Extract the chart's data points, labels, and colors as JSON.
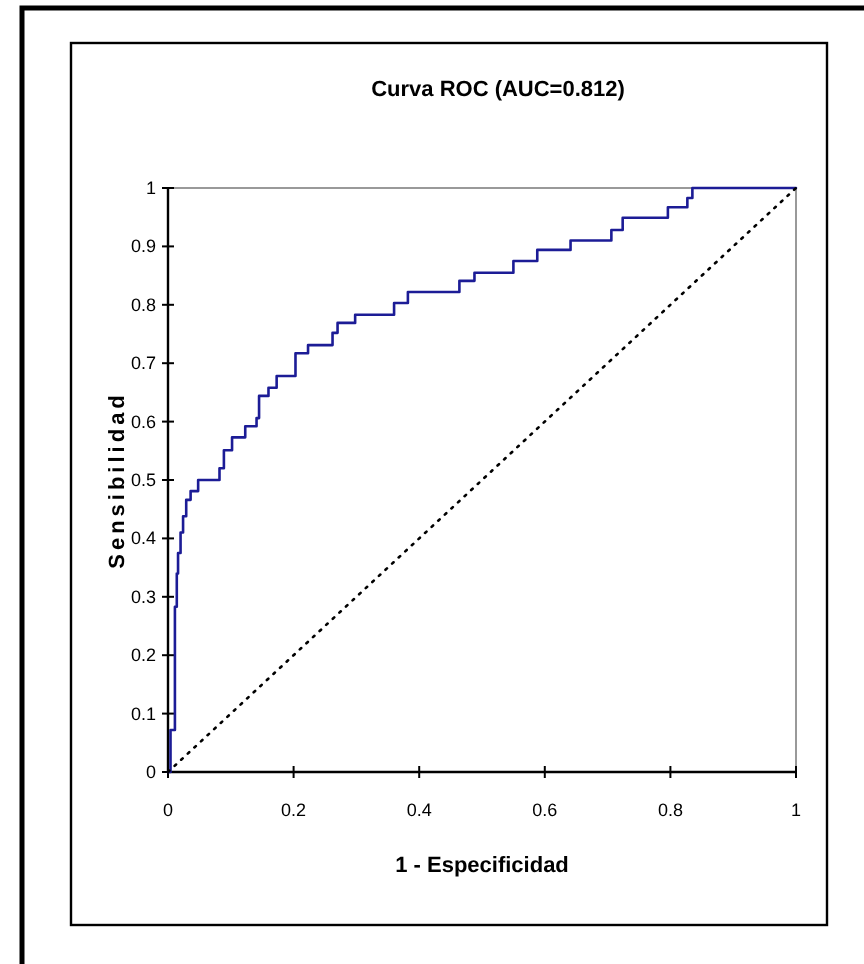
{
  "chart_data": {
    "type": "step",
    "title": "Curva ROC (AUC=0.812)",
    "xlabel": "1 - Especificidad",
    "ylabel": "Sensibilidad",
    "xlim": [
      0,
      1
    ],
    "ylim": [
      0,
      1
    ],
    "xticks": [
      0,
      0.2,
      0.4,
      0.6,
      0.8,
      1
    ],
    "yticks": [
      0,
      0.1,
      0.2,
      0.3,
      0.4,
      0.5,
      0.6,
      0.7,
      0.8,
      0.9,
      1
    ],
    "grid": false,
    "series": [
      {
        "type": "step",
        "color": "#1c1c96",
        "line_style": "solid",
        "x": [
          0,
          0.004,
          0.011,
          0.014,
          0.016,
          0.02,
          0.024,
          0.029,
          0.036,
          0.048,
          0.082,
          0.089,
          0.102,
          0.123,
          0.141,
          0.145,
          0.16,
          0.173,
          0.203,
          0.223,
          0.262,
          0.27,
          0.298,
          0.36,
          0.382,
          0.464,
          0.488,
          0.55,
          0.588,
          0.641,
          0.706,
          0.724,
          0.796,
          0.827,
          0.835,
          1
        ],
        "values": [
          0,
          0.072,
          0.283,
          0.34,
          0.375,
          0.41,
          0.438,
          0.466,
          0.481,
          0.5,
          0.52,
          0.551,
          0.573,
          0.592,
          0.606,
          0.644,
          0.658,
          0.678,
          0.717,
          0.731,
          0.752,
          0.769,
          0.783,
          0.803,
          0.822,
          0.841,
          0.855,
          0.875,
          0.894,
          0.91,
          0.928,
          0.949,
          0.967,
          0.983,
          1,
          1
        ]
      },
      {
        "type": "line",
        "color": "#000000",
        "line_style": "dotted",
        "x": [
          0,
          1
        ],
        "values": [
          0,
          1
        ]
      }
    ]
  }
}
